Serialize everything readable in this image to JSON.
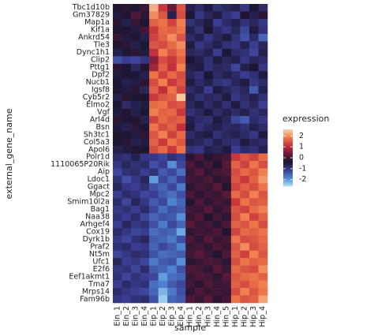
{
  "chart_data": {
    "type": "heatmap",
    "x_label": "sample",
    "y_label": "external_gene_name",
    "legend_title": "expression",
    "x": [
      "Ein_1",
      "Ein_2",
      "Ein_3",
      "Ein_4",
      "Eip_1",
      "Eip_2",
      "Eip_3",
      "Eip_4",
      "Hin_1",
      "Hin_2",
      "Hin_3",
      "Hin_4",
      "Hin_5",
      "Hip_1",
      "Hip_2",
      "Hip_3",
      "Hip_4"
    ],
    "y": [
      "Tbc1d10b",
      "Gm37829",
      "Map1a",
      "Kif1a",
      "Ankrd54",
      "Tle3",
      "Dync1h1",
      "Clip2",
      "Pttg1",
      "Dpf2",
      "Nucb1",
      "Igsf8",
      "Cyb5r2",
      "Elmo2",
      "Vgf",
      "Arl4d",
      "Bsn",
      "Sh3tc1",
      "Col5a3",
      "Apol6",
      "Polr1d",
      "1110065P20Rik",
      "Aip",
      "Ldoc1",
      "Ggact",
      "Mpc2",
      "Smim10l2a",
      "Bag1",
      "Naa38",
      "Arhgef4",
      "Cox19",
      "Dyrk1b",
      "Praf2",
      "Nt5m",
      "Ufc1",
      "E2f6",
      "Eef1akmt1",
      "Tma7",
      "Mrps14",
      "Fam96b"
    ],
    "values": [
      [
        -0.3,
        -0.2,
        -0.4,
        -0.1,
        2.3,
        1.2,
        0.3,
        1.5,
        -0.6,
        -0.8,
        -0.5,
        -0.9,
        -0.7,
        -0.6,
        -1.0,
        -0.4,
        -0.8
      ],
      [
        -0.5,
        -0.3,
        0.1,
        -0.2,
        2.0,
        1.5,
        -0.6,
        1.4,
        -0.4,
        -1.0,
        -0.7,
        -0.5,
        -0.9,
        -1.1,
        -0.3,
        -0.6,
        -0.2
      ],
      [
        -0.2,
        -0.6,
        -0.1,
        -0.4,
        1.6,
        1.8,
        1.3,
        1.9,
        -0.9,
        -0.7,
        -0.5,
        -1.1,
        -0.8,
        -0.6,
        -0.9,
        -0.7,
        -1.0
      ],
      [
        -0.4,
        -0.3,
        -0.5,
        0.0,
        1.2,
        1.7,
        1.6,
        1.8,
        -0.6,
        -0.9,
        -0.4,
        -0.8,
        -1.0,
        -0.7,
        -1.2,
        -0.5,
        -0.9
      ],
      [
        -0.1,
        -0.5,
        -0.3,
        -0.6,
        1.3,
        1.6,
        2.0,
        1.5,
        -0.8,
        -0.6,
        -1.0,
        -0.7,
        -0.5,
        -0.9,
        -1.3,
        -0.8,
        -1.5
      ],
      [
        -0.3,
        -0.2,
        -0.6,
        -0.4,
        1.5,
        1.4,
        1.7,
        2.0,
        -0.5,
        -1.0,
        -0.8,
        -0.6,
        -0.9,
        -1.0,
        -0.6,
        -1.1,
        -0.7
      ],
      [
        -0.6,
        -0.4,
        -0.2,
        -0.5,
        1.1,
        1.9,
        1.5,
        1.8,
        -0.7,
        -0.8,
        -0.6,
        -1.1,
        -0.4,
        -0.8,
        -0.9,
        -1.2,
        -0.6
      ],
      [
        -1.3,
        -1.1,
        -1.2,
        -1.0,
        0.6,
        1.4,
        1.2,
        1.6,
        -0.4,
        -0.6,
        -0.9,
        -0.5,
        -0.7,
        -0.6,
        -1.0,
        -0.7,
        -0.8
      ],
      [
        -0.2,
        -0.4,
        -0.7,
        -0.3,
        0.8,
        1.6,
        1.1,
        1.9,
        -0.6,
        -0.5,
        -0.9,
        -0.7,
        -0.8,
        -1.2,
        -0.6,
        -0.4,
        -1.0
      ],
      [
        -0.5,
        -0.3,
        -0.4,
        -0.6,
        1.8,
        1.3,
        1.7,
        1.4,
        -0.7,
        -0.9,
        -0.4,
        -0.8,
        -0.6,
        -0.8,
        -1.1,
        -0.9,
        -0.5
      ],
      [
        -0.4,
        -0.6,
        -0.5,
        -0.2,
        1.4,
        1.9,
        1.2,
        1.5,
        -0.5,
        -0.8,
        -0.6,
        -0.9,
        -1.0,
        -0.7,
        -0.5,
        -1.0,
        -0.8
      ],
      [
        -0.3,
        -0.5,
        -0.2,
        -0.7,
        1.6,
        1.1,
        1.8,
        1.3,
        -0.8,
        -0.6,
        -1.1,
        -0.5,
        -0.7,
        -0.9,
        -0.7,
        -1.4,
        -0.6
      ],
      [
        -0.6,
        -0.2,
        -0.4,
        -0.3,
        1.2,
        1.5,
        1.6,
        2.5,
        -0.6,
        -0.9,
        -0.7,
        -0.8,
        -0.5,
        -1.0,
        -0.8,
        -0.6,
        -0.9
      ],
      [
        -0.4,
        -0.8,
        -0.6,
        -0.5,
        1.7,
        1.8,
        1.4,
        1.5,
        -0.7,
        -0.5,
        -0.8,
        -0.6,
        -0.9,
        -0.5,
        -0.9,
        -0.7,
        -1.1
      ],
      [
        -0.5,
        -0.3,
        -0.6,
        -0.4,
        1.9,
        1.6,
        1.7,
        1.2,
        -0.9,
        -0.7,
        -0.5,
        -0.8,
        -0.6,
        -0.8,
        -0.6,
        -0.9,
        -0.7
      ],
      [
        -0.2,
        -0.4,
        -0.3,
        -0.6,
        1.3,
        1.7,
        1.5,
        1.6,
        -0.6,
        -0.8,
        -0.9,
        -0.5,
        -0.7,
        -1.2,
        -1.4,
        -0.8,
        -1.0
      ],
      [
        -0.5,
        -0.6,
        -0.2,
        -0.4,
        1.8,
        1.4,
        1.6,
        1.1,
        -0.5,
        -0.9,
        -0.7,
        -0.6,
        -0.8,
        -0.7,
        -0.9,
        -0.6,
        -0.8
      ],
      [
        -0.3,
        -0.4,
        -0.5,
        -0.2,
        1.5,
        1.9,
        1.3,
        1.7,
        -0.8,
        -0.6,
        -0.5,
        -0.9,
        -0.7,
        -0.6,
        -0.8,
        -1.0,
        -0.5
      ],
      [
        -0.4,
        -0.2,
        -0.6,
        -0.5,
        1.6,
        1.2,
        1.8,
        1.5,
        -0.6,
        -0.7,
        -0.9,
        -0.6,
        -0.8,
        -0.9,
        -0.5,
        -0.7,
        -0.8
      ],
      [
        -0.6,
        -0.5,
        -0.3,
        -0.4,
        1.4,
        1.7,
        1.2,
        1.8,
        -0.9,
        -1.0,
        -0.6,
        -0.7,
        -0.5,
        -1.1,
        -0.8,
        -0.9,
        -0.6
      ],
      [
        -0.8,
        -0.9,
        -0.6,
        -1.0,
        -1.0,
        -1.2,
        -0.9,
        -1.1,
        -0.2,
        0.1,
        -0.3,
        -0.1,
        0.0,
        1.2,
        1.5,
        1.3,
        1.7
      ],
      [
        -1.0,
        -0.7,
        -0.9,
        -0.8,
        -1.3,
        -1.1,
        -1.9,
        -1.2,
        0.1,
        -0.2,
        0.0,
        -0.3,
        0.2,
        1.6,
        1.3,
        1.8,
        1.4
      ],
      [
        -1.2,
        -0.9,
        -0.8,
        -1.1,
        -0.9,
        -1.4,
        -1.2,
        -1.6,
        -0.1,
        0.2,
        -0.2,
        0.0,
        0.1,
        1.4,
        1.7,
        1.5,
        1.9
      ],
      [
        -0.9,
        -1.3,
        -1.0,
        -0.7,
        -2.0,
        -1.2,
        -1.5,
        -1.1,
        0.0,
        -0.1,
        0.1,
        -0.2,
        -0.1,
        1.5,
        1.2,
        1.6,
        2.1
      ],
      [
        -0.7,
        -1.0,
        -1.1,
        -0.9,
        -1.3,
        -1.5,
        -1.2,
        -1.7,
        -0.2,
        0.0,
        -0.1,
        0.2,
        -0.3,
        1.3,
        1.6,
        1.4,
        1.8
      ],
      [
        -1.1,
        -0.8,
        -0.9,
        -1.2,
        -1.1,
        -1.4,
        -1.6,
        -1.3,
        0.1,
        -0.2,
        0.0,
        -0.1,
        0.2,
        1.7,
        1.4,
        1.9,
        1.5
      ],
      [
        -0.8,
        -1.2,
        -0.7,
        -1.0,
        -1.4,
        -1.2,
        -1.8,
        -1.5,
        -0.3,
        0.1,
        -0.2,
        0.0,
        -0.1,
        1.2,
        1.8,
        1.5,
        1.6
      ],
      [
        -1.0,
        -0.9,
        -1.1,
        -0.8,
        -1.2,
        -1.6,
        -1.3,
        -1.4,
        0.0,
        -0.1,
        0.2,
        -0.2,
        0.1,
        1.5,
        1.3,
        1.7,
        1.9
      ],
      [
        -0.9,
        -1.1,
        -0.8,
        -1.2,
        -1.5,
        -1.3,
        -1.4,
        -1.9,
        -0.1,
        0.1,
        -0.3,
        0.0,
        -0.2,
        1.4,
        1.9,
        1.3,
        1.6
      ],
      [
        -1.1,
        -0.7,
        -1.0,
        -0.9,
        -1.3,
        -1.7,
        -1.2,
        -1.5,
        0.2,
        -0.1,
        0.0,
        -0.2,
        0.1,
        1.6,
        1.5,
        1.8,
        1.4
      ],
      [
        -0.8,
        -1.0,
        -1.2,
        -1.1,
        -1.6,
        -1.4,
        -1.5,
        -2.1,
        -0.2,
        0.0,
        -0.1,
        0.1,
        -0.3,
        1.3,
        1.7,
        1.6,
        1.8
      ],
      [
        -1.0,
        -1.2,
        -0.9,
        -0.7,
        -1.4,
        -1.5,
        -1.7,
        -1.3,
        0.1,
        -0.2,
        0.2,
        -0.1,
        0.0,
        1.8,
        1.4,
        1.5,
        1.7
      ],
      [
        -0.9,
        -0.8,
        -1.1,
        -1.0,
        -1.5,
        -1.2,
        -1.4,
        -1.8,
        -0.1,
        0.0,
        -0.2,
        0.1,
        -0.1,
        1.5,
        2.0,
        1.4,
        1.6
      ],
      [
        -1.2,
        -1.0,
        -0.8,
        -0.9,
        -1.3,
        -1.6,
        -1.5,
        -1.4,
        0.0,
        0.2,
        -0.1,
        -0.3,
        0.1,
        1.6,
        1.3,
        1.9,
        1.5
      ],
      [
        -0.7,
        -1.1,
        -1.0,
        -1.2,
        -1.7,
        -1.4,
        -1.3,
        -1.9,
        -0.2,
        -0.1,
        0.1,
        0.0,
        -0.2,
        1.4,
        1.8,
        1.6,
        1.7
      ],
      [
        -1.0,
        -0.9,
        -1.2,
        -0.8,
        -1.4,
        -1.5,
        -1.8,
        -1.3,
        0.1,
        0.0,
        -0.2,
        0.2,
        -0.1,
        1.7,
        1.5,
        1.4,
        2.0
      ],
      [
        -0.9,
        -1.2,
        -0.9,
        -1.1,
        -1.2,
        -2.0,
        -1.6,
        -1.5,
        -0.1,
        0.1,
        0.0,
        -0.2,
        0.2,
        1.5,
        1.7,
        1.8,
        1.6
      ],
      [
        -1.1,
        -0.8,
        -1.0,
        -0.9,
        -1.6,
        -1.8,
        -1.4,
        -1.2,
        0.0,
        -0.2,
        0.1,
        -0.1,
        0.0,
        1.6,
        1.4,
        1.7,
        1.9
      ],
      [
        -0.8,
        -1.0,
        -1.1,
        -1.2,
        -1.5,
        -2.2,
        -1.7,
        -1.3,
        -0.2,
        0.1,
        -0.1,
        0.0,
        -0.1,
        1.4,
        1.9,
        1.5,
        1.8
      ],
      [
        -1.0,
        -1.1,
        -0.9,
        -0.8,
        -1.3,
        -2.4,
        -1.5,
        -1.4,
        0.1,
        -0.1,
        0.2,
        -0.2,
        0.0,
        1.8,
        1.5,
        1.6,
        2.2
      ]
    ],
    "zlim": [
      -2.6,
      2.6
    ],
    "zticks": [
      2,
      1,
      0,
      -1,
      -2
    ],
    "colors": [
      "#b4e6f2",
      "#4f8ad6",
      "#3b3d93",
      "#1a1530",
      "#6a1a3c",
      "#c52f3d",
      "#ee7b4a",
      "#f8d3ac"
    ]
  }
}
